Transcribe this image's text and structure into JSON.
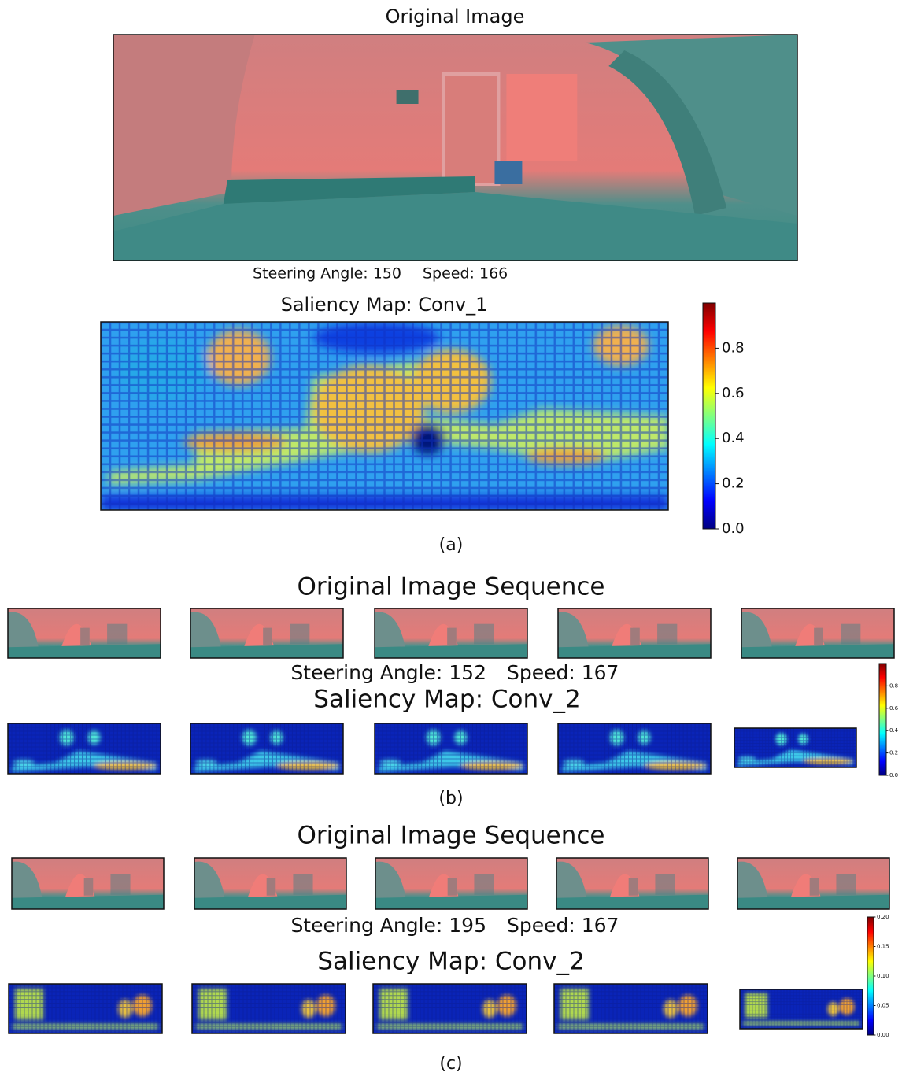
{
  "panels": [
    {
      "label": "(a)",
      "image_title": "Original Image",
      "steering": "Steering Angle: 150",
      "speed": "Speed: 166",
      "saliency_title": "Saliency Map: Conv_1",
      "colorbar": {
        "lim": [
          0,
          1
        ],
        "ticks": [
          {
            "value": 0,
            "label": "0.0"
          },
          0.2,
          0.4,
          0.6,
          0.8
        ]
      }
    },
    {
      "label": "(b)",
      "image_title": "Original Image Sequence",
      "steering": "Steering Angle: 152",
      "speed": "Speed: 167",
      "saliency_title": "Saliency Map: Conv_2",
      "colorbar": {
        "lim": [
          0,
          1
        ],
        "ticks": [
          {
            "value": 0,
            "label": "0.0"
          },
          0.2,
          0.4,
          0.6,
          0.8
        ]
      }
    },
    {
      "label": "(c)",
      "image_title": "Original Image Sequence",
      "steering": "Steering Angle: 195",
      "speed": "Speed: 167",
      "saliency_title": "Saliency Map: Conv_2",
      "colorbar": {
        "lim": [
          0,
          0.2
        ],
        "ticks": [
          {
            "value": 0,
            "label": "0.00"
          },
          0.05,
          {
            "value": 0.1,
            "label": "0.10"
          },
          0.15,
          {
            "value": 0.2,
            "label": "0.20"
          }
        ]
      }
    }
  ]
}
